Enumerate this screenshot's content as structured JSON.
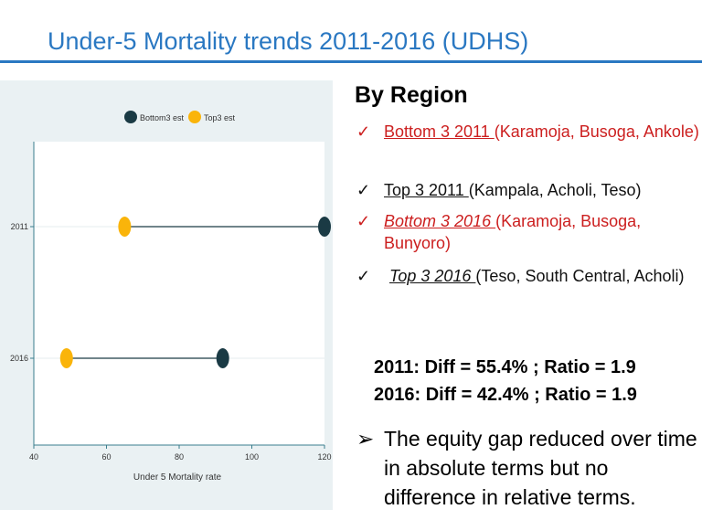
{
  "slide": {
    "title": "Under-5 Mortality trends 2011-2016 (UDHS)"
  },
  "chart_data": {
    "type": "dumbbell",
    "title": "",
    "xlabel": "Under 5 Mortality rate",
    "ylabel": "",
    "xlim": [
      40,
      120
    ],
    "xticks": [
      40,
      60,
      80,
      100,
      120
    ],
    "categories": [
      "2011",
      "2016"
    ],
    "series": [
      {
        "name": "Bottom3 est",
        "color": "#1a3a44",
        "values": [
          120,
          92
        ]
      },
      {
        "name": "Top3 est",
        "color": "#fab40a",
        "values": [
          65,
          49
        ]
      }
    ],
    "legend": "top",
    "grid": true
  },
  "region": {
    "heading": "By Region",
    "check_mark": "✓",
    "items": [
      {
        "label": "Bottom 3  2011 ",
        "detail": "(Karamoja, Busoga, Ankole)"
      },
      {
        "label": "Top 3  2011 ",
        "detail": "(Kampala, Acholi, Teso)"
      },
      {
        "label": "Bottom 3  2016 ",
        "detail": "(Karamoja, Busoga, Bunyoro)"
      },
      {
        "label": "Top 3  2016 ",
        "detail": "(Teso, South Central, Acholi)"
      }
    ]
  },
  "stats": {
    "line_2011": "2011: Diff = 55.4% ; Ratio = 1.9",
    "line_2016": "2016: Diff = 42.4% ; Ratio = 1.9"
  },
  "conclusion": {
    "arrow": "➢",
    "text": "The equity gap reduced over time in absolute terms but no difference in relative terms."
  },
  "colors": {
    "title": "#2a78c2",
    "highlight_red": "#cc1f1f",
    "chart_panel": "#eaf1f3"
  }
}
